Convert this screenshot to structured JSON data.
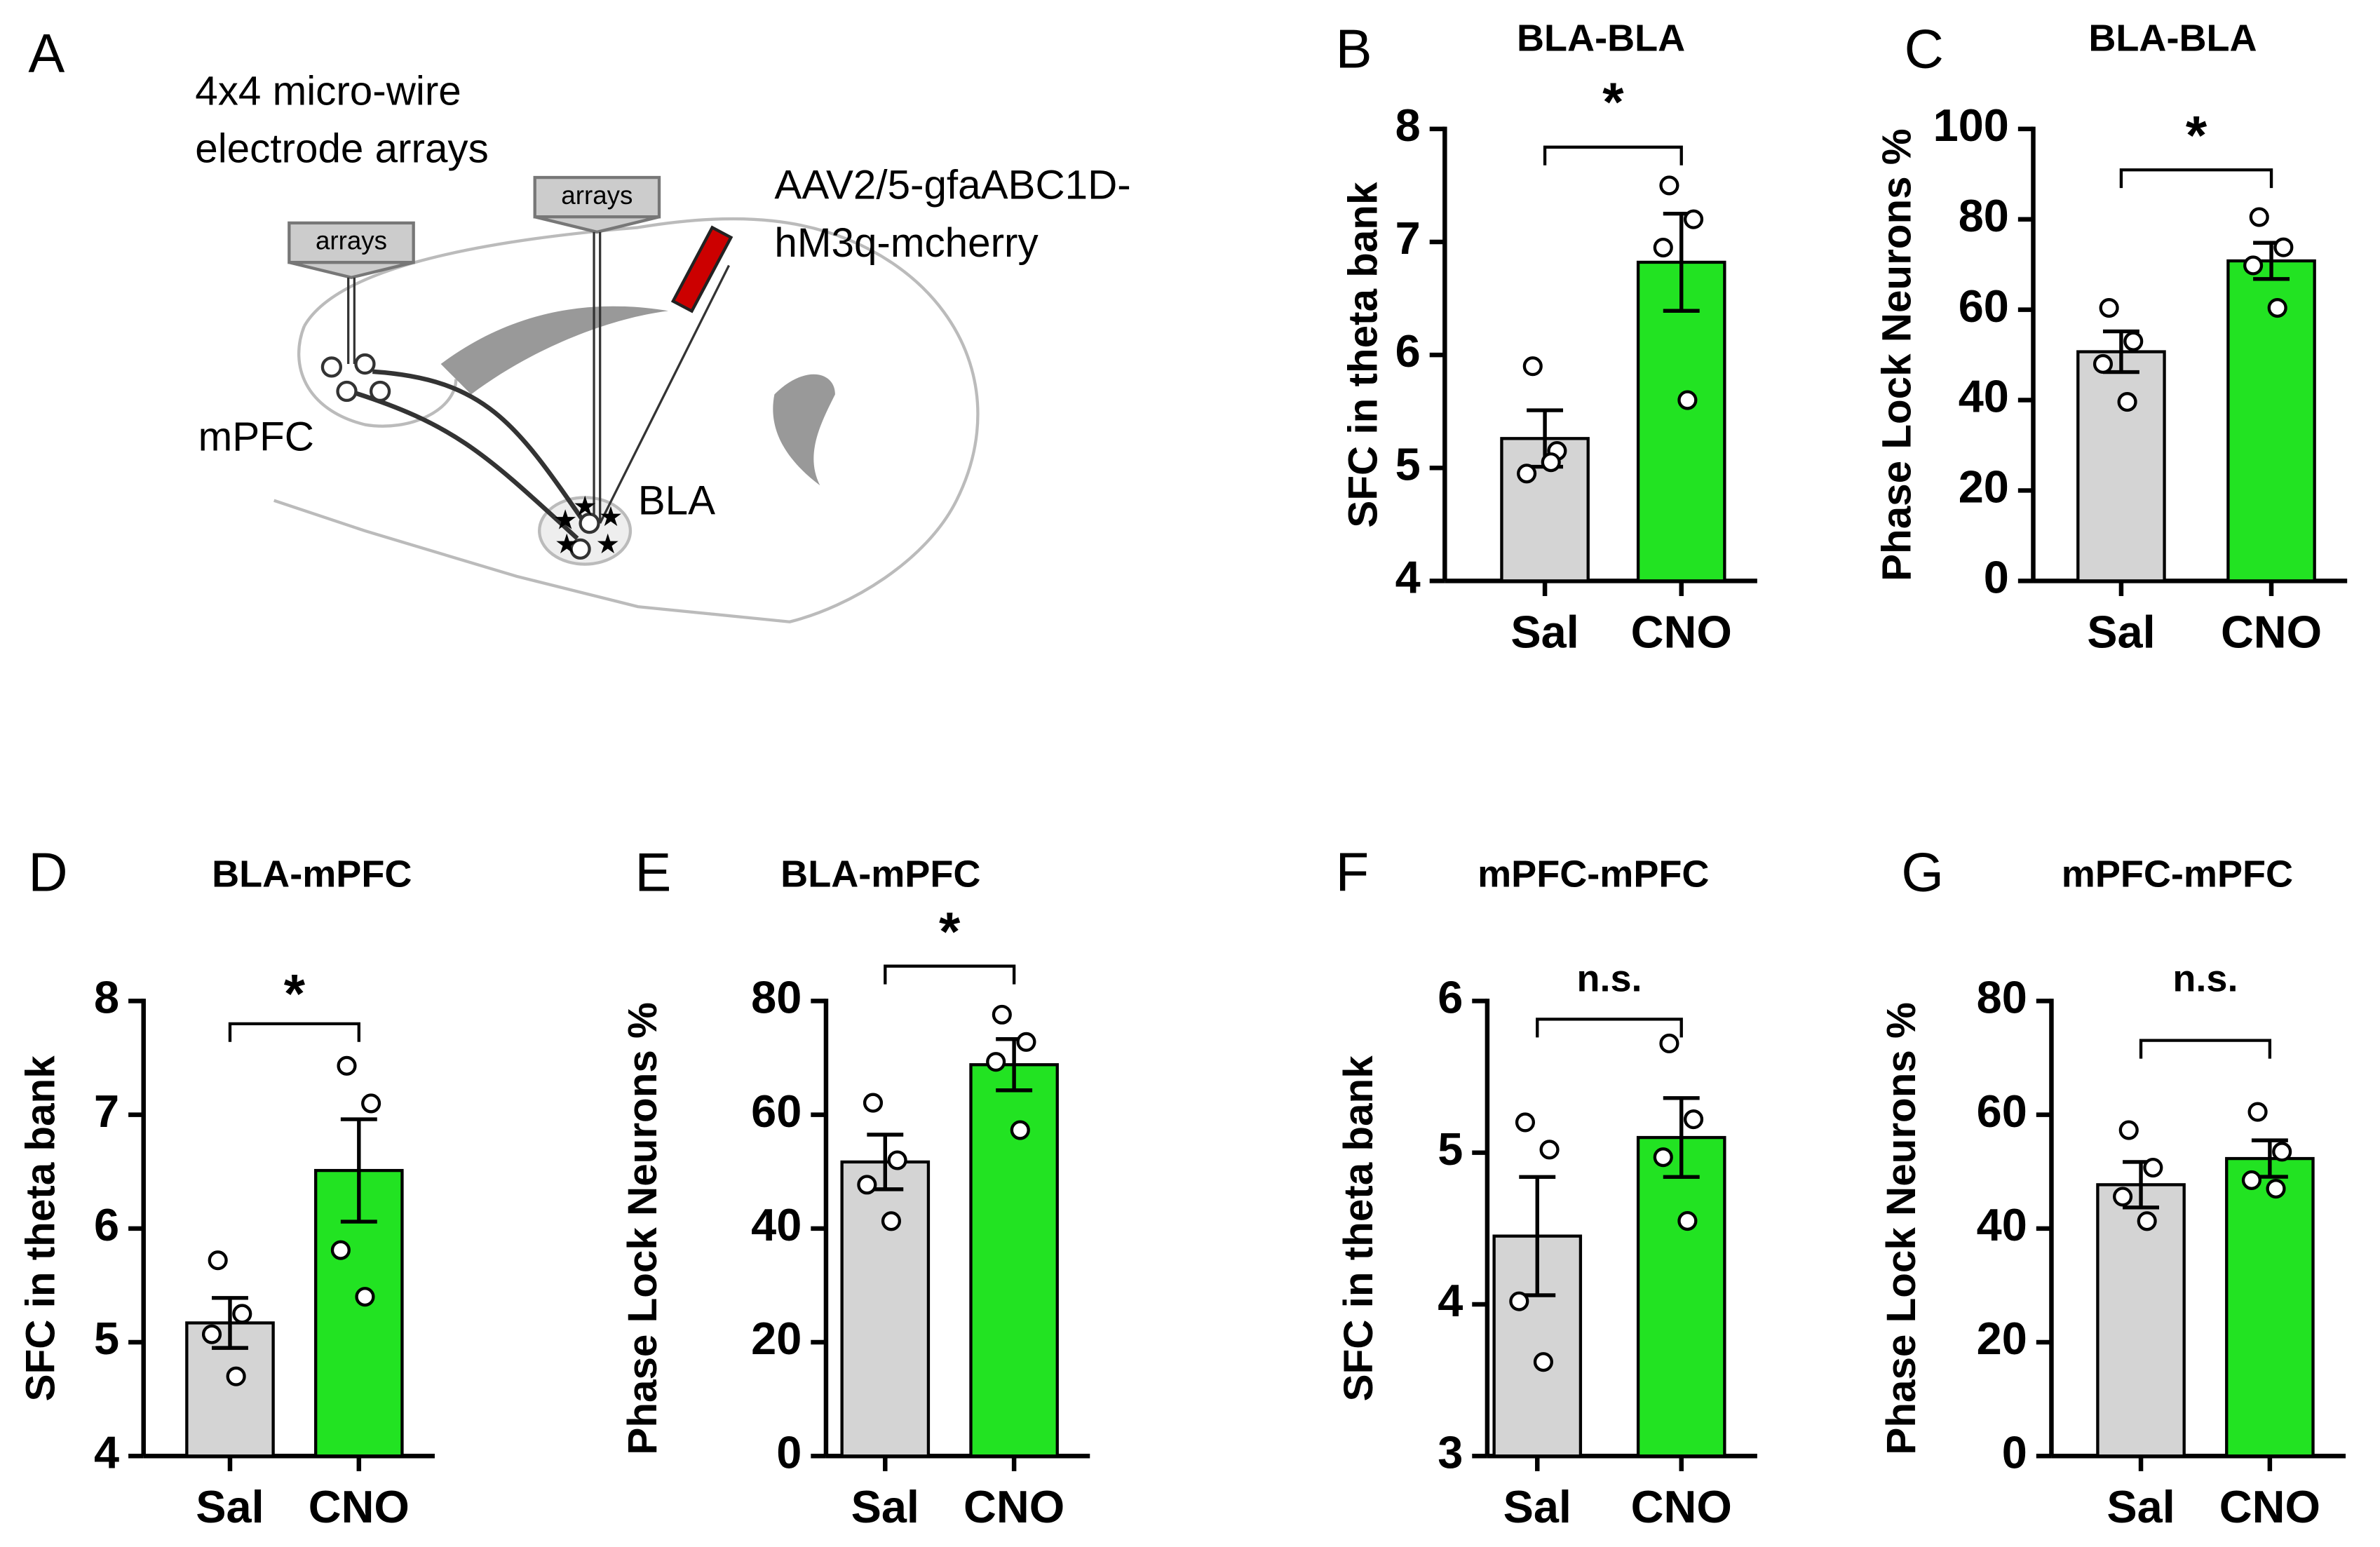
{
  "panel_a": {
    "letter": "A",
    "array_label": [
      "4x4 micro-wire",
      "electrode arrays"
    ],
    "array_tags": [
      "arrays",
      "arrays"
    ],
    "virus": [
      "AAV2/5-gfaABC1D-",
      "hM3q-mcherry"
    ],
    "regions": [
      "mPFC",
      "BLA"
    ]
  },
  "chart_data": [
    {
      "type": "bar",
      "panel": "B",
      "title": "BLA-BLA",
      "ylabel": "SFC in theta bank",
      "categories": [
        "Sal",
        "CNO"
      ],
      "values": [
        5.26,
        6.82
      ],
      "errors": [
        0.25,
        0.43
      ],
      "points": [
        [
          5.9,
          5.15,
          4.95,
          5.05
        ],
        [
          7.5,
          7.2,
          6.95,
          5.6
        ]
      ],
      "colors": [
        "#d4d4d4",
        "#22e322"
      ],
      "annotation": "*",
      "ylim": [
        4,
        8
      ],
      "yticks": [
        4,
        5,
        6,
        7,
        8
      ]
    },
    {
      "type": "bar",
      "panel": "C",
      "title": "BLA-BLA",
      "ylabel": "Phase Lock Neurons %",
      "categories": [
        "Sal",
        "CNO"
      ],
      "values": [
        50.7,
        70.8
      ],
      "errors": [
        4.5,
        4
      ],
      "points": [
        [
          60.4,
          53,
          48,
          39.6
        ],
        [
          80.5,
          73.8,
          69.8,
          60.4
        ]
      ],
      "colors": [
        "#d4d4d4",
        "#22e322"
      ],
      "annotation": "*",
      "ylim": [
        0,
        100
      ],
      "yticks": [
        0,
        20,
        40,
        60,
        80,
        100
      ]
    },
    {
      "type": "bar",
      "panel": "D",
      "title": "BLA-mPFC",
      "ylabel": "SFC in theta bank",
      "categories": [
        "Sal",
        "CNO"
      ],
      "values": [
        5.17,
        6.51
      ],
      "errors": [
        0.22,
        0.45
      ],
      "points": [
        [
          5.72,
          5.25,
          5.07,
          4.7
        ],
        [
          7.43,
          7.1,
          5.81,
          5.4
        ]
      ],
      "colors": [
        "#d4d4d4",
        "#22e322"
      ],
      "annotation": "*",
      "ylim": [
        4,
        8
      ],
      "yticks": [
        4,
        5,
        6,
        7,
        8
      ]
    },
    {
      "type": "bar",
      "panel": "E",
      "title": "BLA-mPFC",
      "ylabel": "Phase Lock Neurons %",
      "categories": [
        "Sal",
        "CNO"
      ],
      "values": [
        51.7,
        68.8
      ],
      "errors": [
        4.8,
        4.5
      ],
      "points": [
        [
          62.1,
          52,
          47.7,
          41.3
        ],
        [
          77.6,
          72.8,
          69.3,
          57.3
        ]
      ],
      "colors": [
        "#d4d4d4",
        "#22e322"
      ],
      "annotation": "*",
      "ylim": [
        0,
        80
      ],
      "yticks": [
        0,
        20,
        40,
        60,
        80
      ]
    },
    {
      "type": "bar",
      "panel": "F",
      "title": "mPFC-mPFC",
      "ylabel": "SFC in theta bank",
      "categories": [
        "Sal",
        "CNO"
      ],
      "values": [
        4.45,
        5.1
      ],
      "errors": [
        0.39,
        0.26
      ],
      "points": [
        [
          5.2,
          5.02,
          4.02,
          3.62
        ],
        [
          5.72,
          5.22,
          4.97,
          4.55
        ]
      ],
      "colors": [
        "#d4d4d4",
        "#22e322"
      ],
      "annotation": "n.s.",
      "ylim": [
        3,
        6
      ],
      "yticks": [
        3,
        4,
        5,
        6
      ]
    },
    {
      "type": "bar",
      "panel": "G",
      "title": "mPFC-mPFC",
      "ylabel": "Phase Lock Neurons %",
      "categories": [
        "Sal",
        "CNO"
      ],
      "values": [
        47.7,
        52.3
      ],
      "errors": [
        4,
        3.2
      ],
      "points": [
        [
          57.3,
          50.7,
          45.6,
          41.3
        ],
        [
          60.5,
          53.5,
          48.5,
          47
        ]
      ],
      "colors": [
        "#d4d4d4",
        "#22e322"
      ],
      "annotation": "n.s.",
      "ylim": [
        0,
        80
      ],
      "yticks": [
        0,
        20,
        40,
        60,
        80
      ]
    }
  ]
}
